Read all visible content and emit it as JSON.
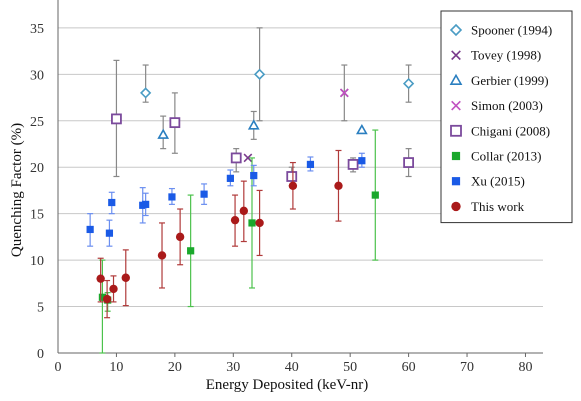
{
  "chart_data": {
    "type": "scatter",
    "title": "",
    "xlabel": "Energy Deposited (keV-nr)",
    "ylabel": "Quenching Factor (%)",
    "xlim": [
      0,
      83
    ],
    "ylim": [
      0,
      38
    ],
    "xticks": [
      "0",
      "10",
      "20",
      "30",
      "40",
      "50",
      "60",
      "70",
      "80"
    ],
    "yticks": [
      "0",
      "5",
      "10",
      "15",
      "20",
      "25",
      "30",
      "35"
    ],
    "grid": "horizontal",
    "legend_position": "top-right",
    "series": [
      {
        "name": "Spooner (1994)",
        "marker": "diamond-open",
        "color": "#4a9cc4",
        "points": [
          {
            "x": 15,
            "y": 28,
            "ylo": 27,
            "yhi": 31
          },
          {
            "x": 34.5,
            "y": 30,
            "ylo": 25,
            "yhi": 35
          },
          {
            "x": 60,
            "y": 29,
            "ylo": 27,
            "yhi": 31
          }
        ]
      },
      {
        "name": "Tovey (1998)",
        "marker": "x",
        "color": "#7a3a8c",
        "points": [
          {
            "x": 32.5,
            "y": 21,
            "ylo": 21,
            "yhi": 21
          },
          {
            "x": 49,
            "y": 28,
            "ylo": 25,
            "yhi": 31
          }
        ]
      },
      {
        "name": "Gerbier (1999)",
        "marker": "triangle-open",
        "color": "#2a7fc0",
        "points": [
          {
            "x": 18,
            "y": 23.5,
            "ylo": 22,
            "yhi": 25.5
          },
          {
            "x": 33.5,
            "y": 24.5,
            "ylo": 23,
            "yhi": 26
          },
          {
            "x": 52,
            "y": 24,
            "ylo": 24,
            "yhi": 24
          }
        ]
      },
      {
        "name": "Simon (2003)",
        "marker": "x",
        "color": "#c050c0",
        "points": [
          {
            "x": 49,
            "y": 28,
            "ylo": 28,
            "yhi": 28
          }
        ]
      },
      {
        "name": "Chigani (2008)",
        "marker": "square-open",
        "color": "#7b4a9c",
        "points": [
          {
            "x": 10,
            "y": 25.2,
            "ylo": 19,
            "yhi": 31.5
          },
          {
            "x": 20,
            "y": 24.8,
            "ylo": 21.5,
            "yhi": 28
          },
          {
            "x": 30.5,
            "y": 21,
            "ylo": 19.5,
            "yhi": 22
          },
          {
            "x": 40,
            "y": 19,
            "ylo": 18,
            "yhi": 20
          },
          {
            "x": 50.5,
            "y": 20.3,
            "ylo": 19.5,
            "yhi": 21
          },
          {
            "x": 60,
            "y": 20.5,
            "ylo": 19,
            "yhi": 22
          }
        ]
      },
      {
        "name": "Collar (2013)",
        "marker": "square",
        "color": "#1aa82c",
        "points": [
          {
            "x": 7.6,
            "y": 6,
            "ylo": 0,
            "yhi": 10
          },
          {
            "x": 8.5,
            "y": 5.7,
            "ylo": 4.5,
            "yhi": 6.5
          },
          {
            "x": 22.7,
            "y": 11,
            "ylo": 5,
            "yhi": 17
          },
          {
            "x": 33.2,
            "y": 14,
            "ylo": 7,
            "yhi": 21
          },
          {
            "x": 54.3,
            "y": 17,
            "ylo": 10,
            "yhi": 24
          }
        ]
      },
      {
        "name": "Xu (2015)",
        "marker": "square",
        "color": "#1a5ae6",
        "points": [
          {
            "x": 5.5,
            "y": 13.3,
            "ylo": 11.5,
            "yhi": 15
          },
          {
            "x": 8.8,
            "y": 12.9,
            "ylo": 11.5,
            "yhi": 14.3
          },
          {
            "x": 9.2,
            "y": 16.2,
            "ylo": 15,
            "yhi": 17.3
          },
          {
            "x": 14.5,
            "y": 15.9,
            "ylo": 14,
            "yhi": 17.8
          },
          {
            "x": 15,
            "y": 16,
            "ylo": 14.8,
            "yhi": 17.2
          },
          {
            "x": 19.5,
            "y": 16.8,
            "ylo": 16,
            "yhi": 17.7
          },
          {
            "x": 25,
            "y": 17.1,
            "ylo": 16,
            "yhi": 18.2
          },
          {
            "x": 29.5,
            "y": 18.8,
            "ylo": 18,
            "yhi": 19.7
          },
          {
            "x": 33.5,
            "y": 19.1,
            "ylo": 18,
            "yhi": 20.2
          },
          {
            "x": 43.2,
            "y": 20.3,
            "ylo": 19.6,
            "yhi": 21.1
          },
          {
            "x": 52,
            "y": 20.7,
            "ylo": 20,
            "yhi": 21.5
          }
        ]
      },
      {
        "name": "This work",
        "marker": "circle",
        "color": "#aa1a1a",
        "points": [
          {
            "x": 7.3,
            "y": 8,
            "ylo": 5.5,
            "yhi": 10.2
          },
          {
            "x": 8.4,
            "y": 5.8,
            "ylo": 3.8,
            "yhi": 7.8
          },
          {
            "x": 9.5,
            "y": 6.9,
            "ylo": 5.5,
            "yhi": 8.3
          },
          {
            "x": 11.6,
            "y": 8.1,
            "ylo": 5.1,
            "yhi": 11.1
          },
          {
            "x": 17.8,
            "y": 10.5,
            "ylo": 7,
            "yhi": 14
          },
          {
            "x": 20.9,
            "y": 12.5,
            "ylo": 9.5,
            "yhi": 15.5
          },
          {
            "x": 30.3,
            "y": 14.3,
            "ylo": 11.5,
            "yhi": 17
          },
          {
            "x": 31.8,
            "y": 15.3,
            "ylo": 12,
            "yhi": 18.5
          },
          {
            "x": 34.5,
            "y": 14,
            "ylo": 10.5,
            "yhi": 17.5
          },
          {
            "x": 40.2,
            "y": 18,
            "ylo": 15.5,
            "yhi": 20.5
          },
          {
            "x": 48,
            "y": 18,
            "ylo": 14.2,
            "yhi": 21.8
          }
        ]
      }
    ]
  }
}
